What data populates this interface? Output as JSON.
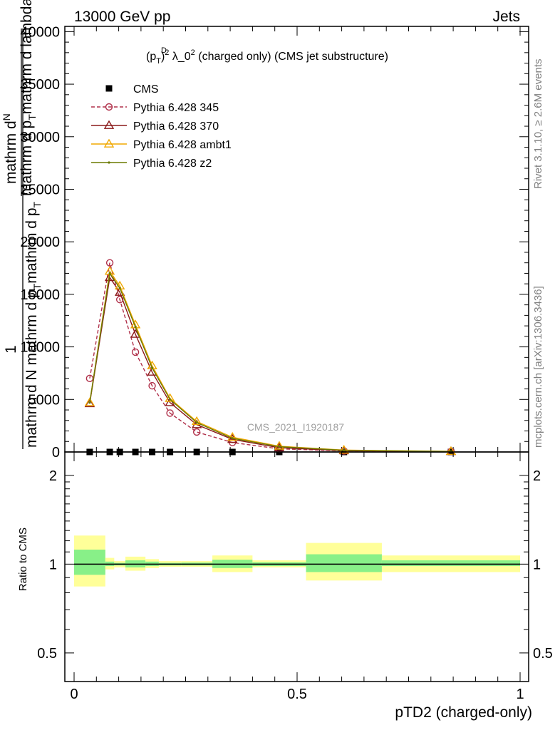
{
  "header": {
    "left": "13000 GeV pp",
    "right": "Jets"
  },
  "side": {
    "version": "Rivet 3.1.10, ≥ 2.6M events",
    "source": "mcplots.cern.ch [arXiv:1306.3436]"
  },
  "watermark": "CMS_2021_I1920187",
  "chart_data": [
    {
      "type": "line",
      "title_parts": {
        "p": "(p",
        "sup_D": "D",
        "sub_T": "T",
        "close": ")",
        "sup_2": "2",
        "rest": " λ_0",
        "sup_2b": "2",
        "tail": " (charged only) (CMS jet substructure)"
      },
      "ylabel_lines": [
        "mathrm dN",
        "mathrm d p_T mathrm d lambda"
      ],
      "ylabel_full": "1 / (mathrm d N mathrm d p_T mathrm d p_T)",
      "ylabel_parts": {
        "one": "1",
        "denom": "mathrm d N mathrm d p",
        "t": "T",
        "rest": "mathrm d p",
        "t2": "T",
        "num1": "mathrm d",
        "num1b": "N",
        "num2": "mathrm d p",
        "num2t": "T",
        "num2r": "mathrm d lambda"
      },
      "xlim": [
        0,
        1
      ],
      "ylim": [
        0,
        40500
      ],
      "yticks": [
        0,
        5000,
        10000,
        15000,
        20000,
        25000,
        30000,
        35000,
        40000
      ],
      "ytick_labels": [
        "0",
        "5000",
        "10000",
        "15000",
        "20000",
        "25000",
        "30000",
        "35000",
        "40000"
      ],
      "bin_edges": [
        0.0,
        0.07,
        0.09,
        0.115,
        0.16,
        0.19,
        0.24,
        0.31,
        0.4,
        0.52,
        0.69,
        1.0
      ],
      "legend_position": "top-left",
      "series": [
        {
          "name": "CMS",
          "x": [
            0.035,
            0.08,
            0.1025,
            0.1375,
            0.175,
            0.215,
            0.275,
            0.355,
            0.46,
            0.605,
            0.845
          ],
          "y": [
            0,
            0,
            0,
            0,
            0,
            0,
            0,
            0,
            0,
            0,
            0
          ],
          "color": "#000000",
          "marker": "square",
          "style": "none"
        },
        {
          "name": "Pythia 6.428 345",
          "x": [
            0.035,
            0.08,
            0.1025,
            0.1375,
            0.175,
            0.215,
            0.275,
            0.355,
            0.46,
            0.605,
            0.845
          ],
          "y": [
            7000,
            18000,
            14500,
            9500,
            6300,
            3700,
            1900,
            900,
            300,
            100,
            50
          ],
          "color": "#b0304a",
          "marker": "circle",
          "style": "dashed"
        },
        {
          "name": "Pythia 6.428 370",
          "x": [
            0.035,
            0.08,
            0.1025,
            0.1375,
            0.175,
            0.215,
            0.275,
            0.355,
            0.46,
            0.605,
            0.845
          ],
          "y": [
            4600,
            16600,
            15200,
            11200,
            7600,
            4700,
            2600,
            1200,
            400,
            120,
            40
          ],
          "color": "#8b1a1a",
          "marker": "triangle",
          "style": "solid"
        },
        {
          "name": "Pythia 6.428 ambt1",
          "x": [
            0.035,
            0.08,
            0.1025,
            0.1375,
            0.175,
            0.215,
            0.275,
            0.355,
            0.46,
            0.605,
            0.845
          ],
          "y": [
            4700,
            17200,
            15800,
            12100,
            8200,
            5100,
            2900,
            1400,
            550,
            180,
            60
          ],
          "color": "#f0a800",
          "marker": "triangle",
          "style": "solid"
        },
        {
          "name": "Pythia 6.428 z2",
          "x": [
            0.035,
            0.08,
            0.1025,
            0.1375,
            0.175,
            0.215,
            0.275,
            0.355,
            0.46,
            0.605,
            0.845
          ],
          "y": [
            4700,
            17000,
            15600,
            11900,
            8000,
            5000,
            2800,
            1300,
            500,
            160,
            50
          ],
          "color": "#6b7a00",
          "marker": "dot",
          "style": "solid"
        }
      ]
    },
    {
      "type": "area",
      "ylabel": "Ratio to CMS",
      "xlabel": "pTD2 (charged-only)",
      "xlim": [
        0,
        1
      ],
      "ylim": [
        0.4,
        2.4
      ],
      "yscale": "log",
      "yticks": [
        0.5,
        1,
        2
      ],
      "ytick_labels": [
        "0.5",
        "1",
        "2"
      ],
      "xticks": [
        0,
        0.5,
        1
      ],
      "xtick_labels": [
        "0",
        "0.5",
        "1"
      ],
      "reference_line": 1,
      "bands": [
        {
          "x0": 0.0,
          "x1": 0.07,
          "inner": [
            0.92,
            1.12
          ],
          "outer": [
            0.84,
            1.25
          ]
        },
        {
          "x0": 0.07,
          "x1": 0.09,
          "inner": [
            0.985,
            1.02
          ],
          "outer": [
            0.96,
            1.05
          ]
        },
        {
          "x0": 0.09,
          "x1": 0.115,
          "inner": [
            0.99,
            1.01
          ],
          "outer": [
            0.975,
            1.025
          ]
        },
        {
          "x0": 0.115,
          "x1": 0.16,
          "inner": [
            0.975,
            1.03
          ],
          "outer": [
            0.95,
            1.06
          ]
        },
        {
          "x0": 0.16,
          "x1": 0.19,
          "inner": [
            0.985,
            1.02
          ],
          "outer": [
            0.97,
            1.04
          ]
        },
        {
          "x0": 0.19,
          "x1": 0.24,
          "inner": [
            0.99,
            1.01
          ],
          "outer": [
            0.98,
            1.025
          ]
        },
        {
          "x0": 0.24,
          "x1": 0.31,
          "inner": [
            0.99,
            1.012
          ],
          "outer": [
            0.98,
            1.025
          ]
        },
        {
          "x0": 0.31,
          "x1": 0.4,
          "inner": [
            0.97,
            1.035
          ],
          "outer": [
            0.94,
            1.07
          ]
        },
        {
          "x0": 0.4,
          "x1": 0.52,
          "inner": [
            0.985,
            1.015
          ],
          "outer": [
            0.975,
            1.03
          ]
        },
        {
          "x0": 0.52,
          "x1": 0.69,
          "inner": [
            0.94,
            1.08
          ],
          "outer": [
            0.88,
            1.18
          ]
        },
        {
          "x0": 0.69,
          "x1": 1.0,
          "inner": [
            0.985,
            1.03
          ],
          "outer": [
            0.94,
            1.07
          ]
        }
      ],
      "band_colors": {
        "inner": "#88f088",
        "outer": "#ffff99"
      }
    }
  ]
}
